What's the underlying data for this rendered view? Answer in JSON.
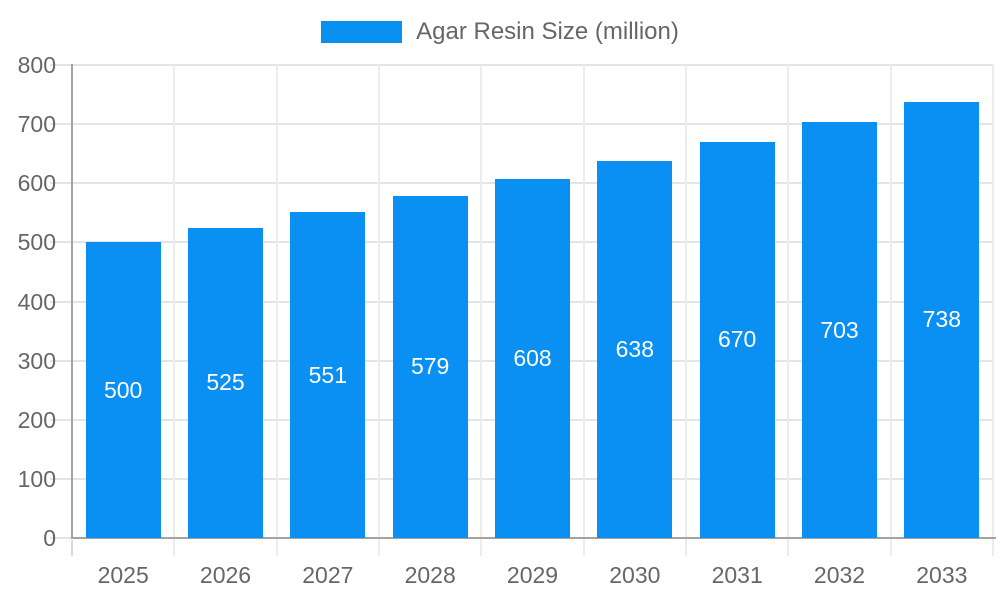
{
  "legend": {
    "label": "Agar Resin Size (million)"
  },
  "chart_data": {
    "type": "bar",
    "title": "Agar Resin Size (million)",
    "categories": [
      "2025",
      "2026",
      "2027",
      "2028",
      "2029",
      "2030",
      "2031",
      "2032",
      "2033"
    ],
    "series": [
      {
        "name": "Agar Resin Size (million)",
        "values": [
          500,
          525,
          551,
          579,
          608,
          638,
          670,
          703,
          738
        ]
      }
    ],
    "xlabel": "",
    "ylabel": "",
    "ylim": [
      0,
      800
    ],
    "ytick_step": 100,
    "grid": true,
    "legend_position": "top",
    "bar_labels_inside": true
  },
  "colors": {
    "bar": "#0a90f2",
    "bar_label": "#ffffff",
    "axis_line": "#a3a3a3",
    "gridline": "#e4e4e4",
    "gridline_vertical": "#ececec",
    "tick": "#d9d9d9",
    "tick_label": "#666666",
    "legend_text": "#666666",
    "background": "#ffffff"
  }
}
